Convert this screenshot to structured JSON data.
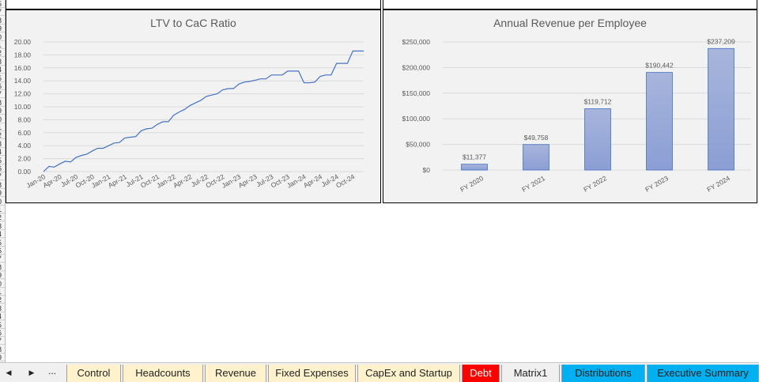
{
  "row_numbers": [
    "5",
    "7",
    "8",
    "9",
    "0",
    "1",
    "2",
    "3",
    "4",
    "5",
    "6",
    "7",
    "8",
    "9",
    "0",
    "1",
    "2",
    "3",
    "4",
    "5",
    "6",
    "7",
    "8",
    "9",
    "0",
    "1",
    "2",
    "3",
    "4",
    "5",
    "6",
    "7",
    "8",
    "9",
    "0",
    "1",
    "2",
    "3",
    "4",
    "5",
    "6",
    "7",
    "8",
    "9",
    "0"
  ],
  "charts_meta": {
    "ltv_title": "LTV to CaC Ratio",
    "rev_title": "Annual Revenue per Employee"
  },
  "chart_data": [
    {
      "type": "line",
      "title": "LTV to CaC Ratio",
      "xlabel": "",
      "ylabel": "",
      "ylim": [
        0,
        20
      ],
      "y_ticks": [
        "0.00",
        "2.00",
        "4.00",
        "6.00",
        "8.00",
        "10.00",
        "12.00",
        "14.00",
        "16.00",
        "18.00",
        "20.00"
      ],
      "x_tick_labels": [
        "Jan-20",
        "Apr-20",
        "Jul-20",
        "Oct-20",
        "Jan-21",
        "Apr-21",
        "Jul-21",
        "Oct-21",
        "Jan-22",
        "Apr-22",
        "Jul-22",
        "Oct-22",
        "Jan-23",
        "Apr-23",
        "Jul-23",
        "Oct-23",
        "Jan-24",
        "Apr-24",
        "Jul-24",
        "Oct-24"
      ],
      "grid": true,
      "series": [
        {
          "values": [
            0.0,
            0.8,
            0.7,
            1.2,
            1.6,
            1.5,
            2.2,
            2.5,
            2.7,
            3.2,
            3.6,
            3.6,
            4.0,
            4.4,
            4.5,
            5.2,
            5.3,
            5.4,
            6.3,
            6.6,
            6.7,
            7.3,
            7.7,
            7.7,
            8.7,
            9.2,
            9.6,
            10.2,
            10.6,
            11.0,
            11.6,
            11.8,
            12.0,
            12.6,
            12.8,
            12.8,
            13.5,
            13.8,
            13.9,
            14.1,
            14.3,
            14.3,
            14.9,
            14.9,
            14.9,
            15.5,
            15.5,
            15.5,
            13.7,
            13.7,
            13.8,
            14.7,
            14.9,
            14.9,
            16.7,
            16.7,
            16.7,
            18.6,
            18.6,
            18.6
          ]
        }
      ],
      "colors": {
        "line": "#4472c4"
      }
    },
    {
      "type": "bar",
      "title": "Annual Revenue per Employee",
      "categories": [
        "FY 2020",
        "FY 2021",
        "FY 2022",
        "FY 2023",
        "FY 2024"
      ],
      "values": [
        11377,
        49758,
        119712,
        190442,
        237209
      ],
      "data_labels": [
        "$11,377",
        "$49,758",
        "$119,712",
        "$190,442",
        "$237,209"
      ],
      "ylim": [
        0,
        250000
      ],
      "y_ticks": [
        "$0",
        "$50,000",
        "$100,000",
        "$150,000",
        "$200,000",
        "$250,000"
      ],
      "grid": true,
      "colors": {
        "bar_top": "#a8b5dc",
        "bar_bottom": "#8b9ed4",
        "bar_border": "#4472c4"
      }
    }
  ],
  "tabs": [
    {
      "label": "Control",
      "bg": "#fff2cc"
    },
    {
      "label": "Headcounts",
      "bg": "#fff2cc"
    },
    {
      "label": "Revenue",
      "bg": "#fff2cc"
    },
    {
      "label": "Fixed Expenses",
      "bg": "#fff2cc"
    },
    {
      "label": "CapEx and Startup",
      "bg": "#fff2cc"
    },
    {
      "label": "Debt",
      "bg": "#ff0000"
    },
    {
      "label": "Matrix1",
      "bg": "#f0f0f0"
    },
    {
      "label": "Distributions",
      "bg": "#00b0f0"
    },
    {
      "label": "Executive Summary",
      "bg": "#00b0f0"
    }
  ],
  "nav": {
    "prev": "◀",
    "next": "▶",
    "more": "..."
  }
}
